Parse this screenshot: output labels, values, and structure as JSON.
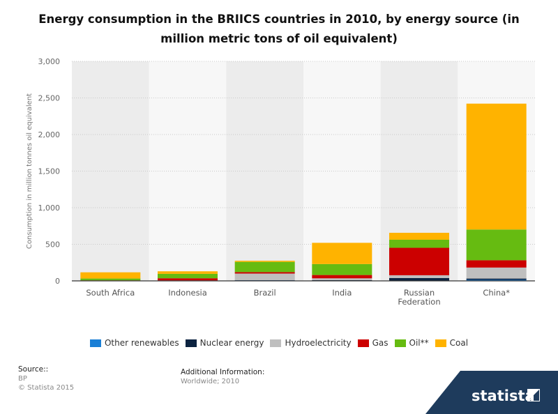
{
  "title": "Energy consumption in the BRIICS countries in 2010, by energy source (in million metric tons of oil equivalent)",
  "chart_data": {
    "type": "bar",
    "stacked": true,
    "categories": [
      "South Africa",
      "Indonesia",
      "Brazil",
      "India",
      "Russian Federation",
      "China*"
    ],
    "ylabel": "Consumption in million tonnes oil equivalent",
    "xlabel": "",
    "ylim": [
      0,
      3000
    ],
    "yticks": [
      0,
      500,
      1000,
      1500,
      2000,
      2500,
      3000
    ],
    "ytick_labels": [
      "0",
      "500",
      "1,000",
      "1,500",
      "2,000",
      "2,500",
      "3,000"
    ],
    "grid": true,
    "legend_position": "bottom",
    "series": [
      {
        "name": "Other renewables",
        "color": "#1a7fd6",
        "values": [
          0.1,
          2,
          7,
          5,
          0.1,
          15
        ]
      },
      {
        "name": "Nuclear energy",
        "color": "#0c2340",
        "values": [
          3,
          0,
          3,
          5,
          39,
          17
        ]
      },
      {
        "name": "Hydroelectricity",
        "color": "#bfbfbf",
        "values": [
          1,
          4,
          90,
          25,
          38,
          150
        ]
      },
      {
        "name": "Gas",
        "color": "#cc0000",
        "values": [
          3,
          30,
          20,
          45,
          375,
          100
        ]
      },
      {
        "name": "Oil**",
        "color": "#66bb11",
        "values": [
          25,
          60,
          140,
          150,
          110,
          420
        ]
      },
      {
        "name": "Coal",
        "color": "#ffb300",
        "values": [
          85,
          35,
          15,
          290,
          95,
          1720
        ]
      }
    ]
  },
  "legend_items": [
    {
      "label": "Other renewables",
      "color": "#1a7fd6"
    },
    {
      "label": "Nuclear energy",
      "color": "#0c2340"
    },
    {
      "label": "Hydroelectricity",
      "color": "#bfbfbf"
    },
    {
      "label": "Gas",
      "color": "#cc0000"
    },
    {
      "label": "Oil**",
      "color": "#66bb11"
    },
    {
      "label": "Coal",
      "color": "#ffb300"
    }
  ],
  "footer": {
    "source_heading": "Source::",
    "source_lines": [
      "BP",
      "© Statista 2015"
    ],
    "addinfo_heading": "Additional Information:",
    "addinfo_text": "Worldwide; 2010",
    "brand": "statista",
    "brand_color": "#1e3b5c"
  }
}
